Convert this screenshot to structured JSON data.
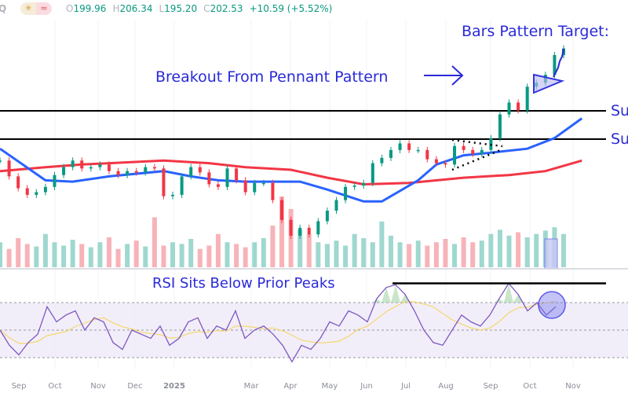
{
  "header": {
    "symbol_partial": "Q",
    "icons": [
      "sun-icon",
      "approx-wave-icon"
    ],
    "open_label": "O",
    "open": "199.96",
    "high_label": "H",
    "high": "206.34",
    "low_label": "L",
    "low": "195.20",
    "close_label": "C",
    "close": "202.53",
    "change": "+10.59 (+5.52%)"
  },
  "annotations": {
    "target": "Bars Pattern Target:",
    "breakout": "Breakout From Pennant Pattern",
    "support_upper": "Su",
    "support_lower": "Su",
    "rsi_note": "RSI Sits Below Prior Peaks"
  },
  "colors": {
    "up": "#089981",
    "down": "#f23645",
    "ma50": "#2962ff",
    "ma200": "#f23645",
    "annotation": "#2a2ad8",
    "rsi": "#7e57c2",
    "rsi_ma": "#f5d76e",
    "rsi_band": "#ede7f6"
  },
  "chart_data": [
    {
      "type": "line",
      "title": "Price (weekly closes, approx.)",
      "x_labels": [
        "Sep",
        "Oct",
        "Nov",
        "Dec",
        "2025",
        "Mar",
        "Apr",
        "May",
        "Jun",
        "Jul",
        "Aug",
        "Sep",
        "Oct",
        "Nov"
      ],
      "closes": [
        119,
        107,
        98,
        93,
        95,
        99,
        108,
        114,
        119,
        113,
        114,
        116,
        111,
        108,
        111,
        110,
        114,
        113,
        92,
        93,
        107,
        114,
        110,
        101,
        99,
        113,
        104,
        95,
        102,
        102,
        89,
        74,
        62,
        68,
        63,
        73,
        81,
        89,
        99,
        100,
        102,
        117,
        121,
        127,
        132,
        127,
        127,
        120,
        117,
        116,
        130,
        127,
        124,
        127,
        136,
        154,
        163,
        157,
        175,
        178,
        184,
        199,
        204
      ],
      "ma50": {
        "index": [
          0,
          5,
          8,
          12,
          18,
          21,
          24,
          27,
          31,
          33,
          36,
          40,
          42,
          43,
          46,
          48,
          51,
          54,
          58,
          61,
          64
        ],
        "values": [
          128,
          104,
          103,
          107,
          111,
          107,
          104,
          103,
          103,
          103,
          97,
          88,
          88,
          92,
          104,
          116,
          123,
          125,
          128,
          136,
          151
        ]
      },
      "ma200": {
        "index": [
          0,
          5,
          9,
          18,
          23,
          27,
          32,
          36,
          40,
          45,
          51,
          56,
          60,
          64
        ],
        "values": [
          111,
          114,
          116,
          119,
          117,
          114,
          112,
          106,
          101,
          102,
          106,
          108,
          111,
          119
        ]
      },
      "support_levels": [
        157,
        135
      ],
      "volume_relative": [
        30,
        22,
        35,
        28,
        25,
        40,
        30,
        26,
        33,
        28,
        24,
        30,
        36,
        22,
        28,
        32,
        25,
        60,
        26,
        30,
        28,
        34,
        22,
        26,
        40,
        30,
        28,
        24,
        30,
        35,
        50,
        85,
        70,
        45,
        40,
        30,
        28,
        32,
        26,
        40,
        35,
        30,
        55,
        38,
        30,
        28,
        32,
        26,
        30,
        34,
        28,
        36,
        30,
        32,
        40,
        45,
        38,
        42,
        36,
        40,
        44,
        48,
        40
      ],
      "ylim": [
        55,
        215
      ]
    },
    {
      "type": "line",
      "title": "RSI",
      "values": [
        50,
        39,
        32,
        41,
        47,
        67,
        56,
        61,
        64,
        50,
        59,
        56,
        41,
        36,
        50,
        47,
        44,
        53,
        39,
        44,
        56,
        59,
        44,
        53,
        50,
        64,
        44,
        50,
        53,
        47,
        39,
        27,
        39,
        36,
        44,
        56,
        53,
        64,
        61,
        56,
        73,
        81,
        83,
        76,
        64,
        50,
        41,
        39,
        50,
        61,
        56,
        53,
        61,
        73,
        84,
        76,
        64,
        70,
        61,
        67
      ],
      "bands": [
        70,
        50,
        30
      ],
      "prior_peak_level": 84,
      "ylim": [
        20,
        95
      ]
    }
  ]
}
